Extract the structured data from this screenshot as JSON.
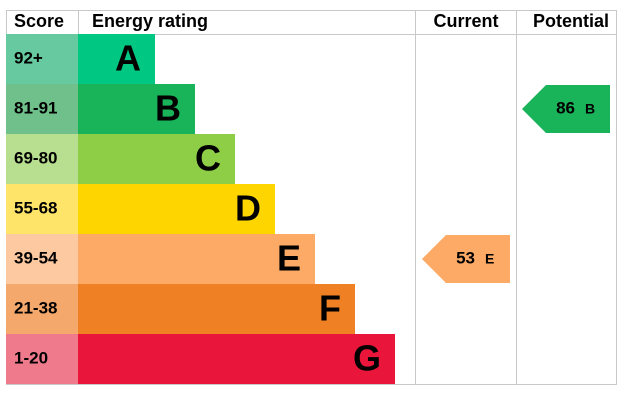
{
  "chart_data": {
    "type": "epc",
    "headers": [
      "Score",
      "Energy rating",
      "Current",
      "Potential"
    ],
    "bands": [
      {
        "score": "92+",
        "letter": "A",
        "color": "#00c781",
        "score_color": "#66c9a0"
      },
      {
        "score": "81-91",
        "letter": "B",
        "color": "#19b459",
        "score_color": "#6fc08a"
      },
      {
        "score": "69-80",
        "letter": "C",
        "color": "#8dce46",
        "score_color": "#b8de8f"
      },
      {
        "score": "55-68",
        "letter": "D",
        "color": "#ffd500",
        "score_color": "#ffe46a"
      },
      {
        "score": "39-54",
        "letter": "E",
        "color": "#fcaa65",
        "score_color": "#fdc9a1"
      },
      {
        "score": "21-38",
        "letter": "F",
        "color": "#ef8023",
        "score_color": "#f4a86b"
      },
      {
        "score": "1-20",
        "letter": "G",
        "color": "#e9153b",
        "score_color": "#ef7a8c"
      }
    ],
    "current": {
      "value": 53,
      "letter": "E"
    },
    "potential": {
      "value": 86,
      "letter": "B"
    }
  }
}
